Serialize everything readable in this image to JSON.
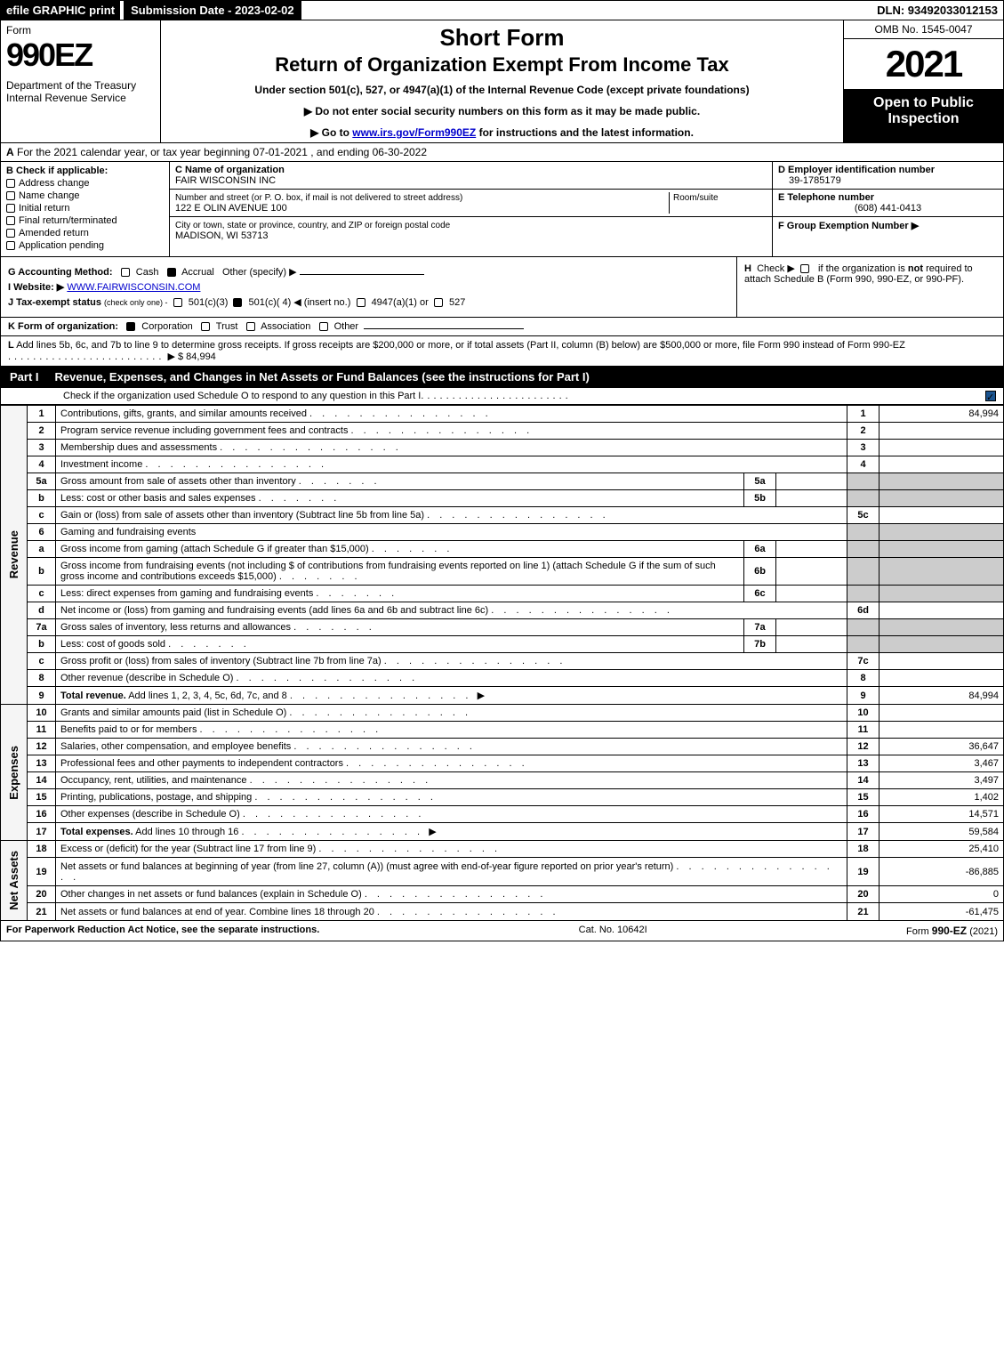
{
  "top_bar": {
    "efile": "efile GRAPHIC print",
    "submission": "Submission Date - 2023-02-02",
    "dln": "DLN: 93492033012153"
  },
  "header": {
    "form_label": "Form",
    "form_number": "990EZ",
    "dept": "Department of the Treasury\nInternal Revenue Service",
    "title1": "Short Form",
    "title2": "Return of Organization Exempt From Income Tax",
    "subtitle": "Under section 501(c), 527, or 4947(a)(1) of the Internal Revenue Code (except private foundations)",
    "note1": "▶ Do not enter social security numbers on this form as it may be made public.",
    "note2_pre": "▶ Go to ",
    "note2_link": "www.irs.gov/Form990EZ",
    "note2_post": " for instructions and the latest information.",
    "omb": "OMB No. 1545-0047",
    "year": "2021",
    "open": "Open to Public Inspection"
  },
  "section_a": {
    "prefix": "A",
    "text": "For the 2021 calendar year, or tax year beginning 07-01-2021 , and ending 06-30-2022"
  },
  "section_b": {
    "header": "B  Check if applicable:",
    "items": [
      "Address change",
      "Name change",
      "Initial return",
      "Final return/terminated",
      "Amended return",
      "Application pending"
    ]
  },
  "section_c": {
    "name_label": "C Name of organization",
    "name": "FAIR WISCONSIN INC",
    "street_label": "Number and street (or P. O. box, if mail is not delivered to street address)",
    "street": "122 E OLIN AVENUE 100",
    "room_label": "Room/suite",
    "city_label": "City or town, state or province, country, and ZIP or foreign postal code",
    "city": "MADISON, WI  53713"
  },
  "section_d": {
    "label": "D Employer identification number",
    "value": "39-1785179"
  },
  "section_e": {
    "label": "E Telephone number",
    "value": "(608) 441-0413"
  },
  "section_f": {
    "label": "F Group Exemption Number  ▶"
  },
  "section_g": {
    "label": "G Accounting Method:",
    "cash": "Cash",
    "accrual": "Accrual",
    "other": "Other (specify) ▶"
  },
  "section_h": {
    "label": "H",
    "text1": "Check ▶",
    "text2": "if the organization is ",
    "text_not": "not",
    "text3": " required to attach Schedule B (Form 990, 990-EZ, or 990-PF)."
  },
  "section_i": {
    "label": "I Website: ▶",
    "value": "WWW.FAIRWISCONSIN.COM"
  },
  "section_j": {
    "label": "J Tax-exempt status",
    "sub": "(check only one) -",
    "opt1": "501(c)(3)",
    "opt2": "501(c)( 4) ◀ (insert no.)",
    "opt3": "4947(a)(1) or",
    "opt4": "527"
  },
  "section_k": {
    "label": "K Form of organization:",
    "opts": [
      "Corporation",
      "Trust",
      "Association",
      "Other"
    ]
  },
  "section_l": {
    "label": "L",
    "text": "Add lines 5b, 6c, and 7b to line 9 to determine gross receipts. If gross receipts are $200,000 or more, or if total assets (Part II, column (B) below) are $500,000 or more, file Form 990 instead of Form 990-EZ",
    "amount": "$ 84,994"
  },
  "part1": {
    "label": "Part I",
    "title": "Revenue, Expenses, and Changes in Net Assets or Fund Balances (see the instructions for Part I)",
    "subtitle": "Check if the organization used Schedule O to respond to any question in this Part I"
  },
  "side_labels": {
    "revenue": "Revenue",
    "expenses": "Expenses",
    "net_assets": "Net Assets"
  },
  "revenue_lines": [
    {
      "n": "1",
      "desc": "Contributions, gifts, grants, and similar amounts received",
      "ref": "1",
      "amt": "84,994"
    },
    {
      "n": "2",
      "desc": "Program service revenue including government fees and contracts",
      "ref": "2",
      "amt": ""
    },
    {
      "n": "3",
      "desc": "Membership dues and assessments",
      "ref": "3",
      "amt": ""
    },
    {
      "n": "4",
      "desc": "Investment income",
      "ref": "4",
      "amt": ""
    },
    {
      "n": "5a",
      "desc": "Gross amount from sale of assets other than inventory",
      "sub": "5a",
      "subamt": ""
    },
    {
      "n": "b",
      "desc": "Less: cost or other basis and sales expenses",
      "sub": "5b",
      "subamt": ""
    },
    {
      "n": "c",
      "desc": "Gain or (loss) from sale of assets other than inventory (Subtract line 5b from line 5a)",
      "ref": "5c",
      "amt": ""
    },
    {
      "n": "6",
      "desc": "Gaming and fundraising events"
    },
    {
      "n": "a",
      "desc": "Gross income from gaming (attach Schedule G if greater than $15,000)",
      "sub": "6a",
      "subamt": ""
    },
    {
      "n": "b",
      "desc": "Gross income from fundraising events (not including $                     of contributions from fundraising events reported on line 1) (attach Schedule G if the sum of such gross income and contributions exceeds $15,000)",
      "sub": "6b",
      "subamt": ""
    },
    {
      "n": "c",
      "desc": "Less: direct expenses from gaming and fundraising events",
      "sub": "6c",
      "subamt": ""
    },
    {
      "n": "d",
      "desc": "Net income or (loss) from gaming and fundraising events (add lines 6a and 6b and subtract line 6c)",
      "ref": "6d",
      "amt": ""
    },
    {
      "n": "7a",
      "desc": "Gross sales of inventory, less returns and allowances",
      "sub": "7a",
      "subamt": ""
    },
    {
      "n": "b",
      "desc": "Less: cost of goods sold",
      "sub": "7b",
      "subamt": ""
    },
    {
      "n": "c",
      "desc": "Gross profit or (loss) from sales of inventory (Subtract line 7b from line 7a)",
      "ref": "7c",
      "amt": ""
    },
    {
      "n": "8",
      "desc": "Other revenue (describe in Schedule O)",
      "ref": "8",
      "amt": ""
    },
    {
      "n": "9",
      "desc": "Total revenue. Add lines 1, 2, 3, 4, 5c, 6d, 7c, and 8",
      "ref": "9",
      "amt": "84,994",
      "bold": true,
      "arrow": true
    }
  ],
  "expense_lines": [
    {
      "n": "10",
      "desc": "Grants and similar amounts paid (list in Schedule O)",
      "ref": "10",
      "amt": ""
    },
    {
      "n": "11",
      "desc": "Benefits paid to or for members",
      "ref": "11",
      "amt": ""
    },
    {
      "n": "12",
      "desc": "Salaries, other compensation, and employee benefits",
      "ref": "12",
      "amt": "36,647"
    },
    {
      "n": "13",
      "desc": "Professional fees and other payments to independent contractors",
      "ref": "13",
      "amt": "3,467"
    },
    {
      "n": "14",
      "desc": "Occupancy, rent, utilities, and maintenance",
      "ref": "14",
      "amt": "3,497"
    },
    {
      "n": "15",
      "desc": "Printing, publications, postage, and shipping",
      "ref": "15",
      "amt": "1,402"
    },
    {
      "n": "16",
      "desc": "Other expenses (describe in Schedule O)",
      "ref": "16",
      "amt": "14,571"
    },
    {
      "n": "17",
      "desc": "Total expenses. Add lines 10 through 16",
      "ref": "17",
      "amt": "59,584",
      "bold": true,
      "arrow": true
    }
  ],
  "netasset_lines": [
    {
      "n": "18",
      "desc": "Excess or (deficit) for the year (Subtract line 17 from line 9)",
      "ref": "18",
      "amt": "25,410"
    },
    {
      "n": "19",
      "desc": "Net assets or fund balances at beginning of year (from line 27, column (A)) (must agree with end-of-year figure reported on prior year's return)",
      "ref": "19",
      "amt": "-86,885"
    },
    {
      "n": "20",
      "desc": "Other changes in net assets or fund balances (explain in Schedule O)",
      "ref": "20",
      "amt": "0"
    },
    {
      "n": "21",
      "desc": "Net assets or fund balances at end of year. Combine lines 18 through 20",
      "ref": "21",
      "amt": "-61,475"
    }
  ],
  "footer": {
    "left": "For Paperwork Reduction Act Notice, see the separate instructions.",
    "center": "Cat. No. 10642I",
    "right_pre": "Form ",
    "right_bold": "990-EZ",
    "right_post": " (2021)"
  }
}
